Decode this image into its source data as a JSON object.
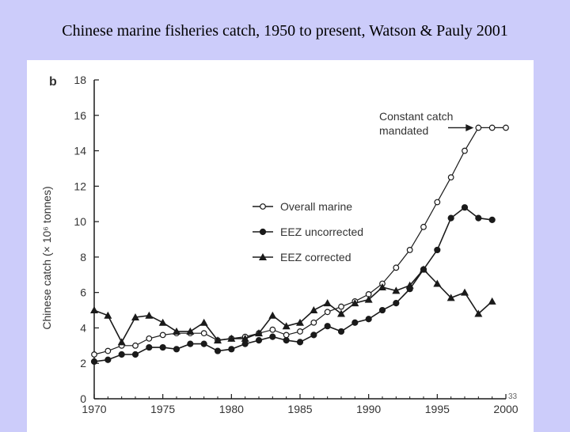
{
  "slide": {
    "title": "Chinese marine fisheries catch, 1950 to present, Watson & Pauly 2001",
    "page_number": "33",
    "background": "#ccccfa"
  },
  "chart_data": {
    "type": "line",
    "panel_label": "b",
    "title": "",
    "xlabel": "",
    "ylabel": "Chinese catch (× 10⁶ tonnes)",
    "xlim": [
      1970,
      2000
    ],
    "ylim": [
      0,
      18
    ],
    "xticks": [
      1970,
      1975,
      1980,
      1985,
      1990,
      1995,
      2000
    ],
    "yticks": [
      0,
      2,
      4,
      6,
      8,
      10,
      12,
      14,
      16,
      18
    ],
    "grid": false,
    "legend_position": "center-right",
    "series": [
      {
        "name": "Overall marine",
        "marker": "open-circle",
        "x": [
          1970,
          1971,
          1972,
          1973,
          1974,
          1975,
          1976,
          1977,
          1978,
          1979,
          1980,
          1981,
          1982,
          1983,
          1984,
          1985,
          1986,
          1987,
          1988,
          1989,
          1990,
          1991,
          1992,
          1993,
          1994,
          1995,
          1996,
          1997,
          1998,
          1999,
          2000
        ],
        "y": [
          2.5,
          2.7,
          3.0,
          3.0,
          3.4,
          3.6,
          3.7,
          3.7,
          3.7,
          3.3,
          3.4,
          3.5,
          3.7,
          3.9,
          3.6,
          3.8,
          4.3,
          4.9,
          5.2,
          5.5,
          5.9,
          6.5,
          7.4,
          8.4,
          9.7,
          11.1,
          12.5,
          14.0,
          15.3,
          15.3,
          15.3
        ]
      },
      {
        "name": "EEZ uncorrected",
        "marker": "filled-circle",
        "x": [
          1970,
          1971,
          1972,
          1973,
          1974,
          1975,
          1976,
          1977,
          1978,
          1979,
          1980,
          1981,
          1982,
          1983,
          1984,
          1985,
          1986,
          1987,
          1988,
          1989,
          1990,
          1991,
          1992,
          1993,
          1994,
          1995,
          1996,
          1997,
          1998,
          1999
        ],
        "y": [
          2.1,
          2.2,
          2.5,
          2.5,
          2.9,
          2.9,
          2.8,
          3.1,
          3.1,
          2.7,
          2.8,
          3.1,
          3.3,
          3.5,
          3.3,
          3.2,
          3.6,
          4.1,
          3.8,
          4.3,
          4.5,
          5.0,
          5.4,
          6.2,
          7.3,
          8.4,
          10.2,
          10.8,
          10.2,
          10.1
        ]
      },
      {
        "name": "EEZ corrected",
        "marker": "filled-triangle",
        "x": [
          1970,
          1971,
          1972,
          1973,
          1974,
          1975,
          1976,
          1977,
          1978,
          1979,
          1980,
          1981,
          1982,
          1983,
          1984,
          1985,
          1986,
          1987,
          1988,
          1989,
          1990,
          1991,
          1992,
          1993,
          1994,
          1995,
          1996,
          1997,
          1998,
          1999
        ],
        "y": [
          5.0,
          4.7,
          3.2,
          4.6,
          4.7,
          4.3,
          3.8,
          3.8,
          4.3,
          3.3,
          3.4,
          3.4,
          3.7,
          4.7,
          4.1,
          4.3,
          5.0,
          5.4,
          4.8,
          5.4,
          5.6,
          6.3,
          6.1,
          6.4,
          7.3,
          6.5,
          5.7,
          6.0,
          4.8,
          5.5
        ]
      }
    ],
    "annotation": {
      "lines": [
        "Constant catch",
        "mandated"
      ],
      "arrow_to": [
        1998,
        15.3
      ]
    }
  }
}
